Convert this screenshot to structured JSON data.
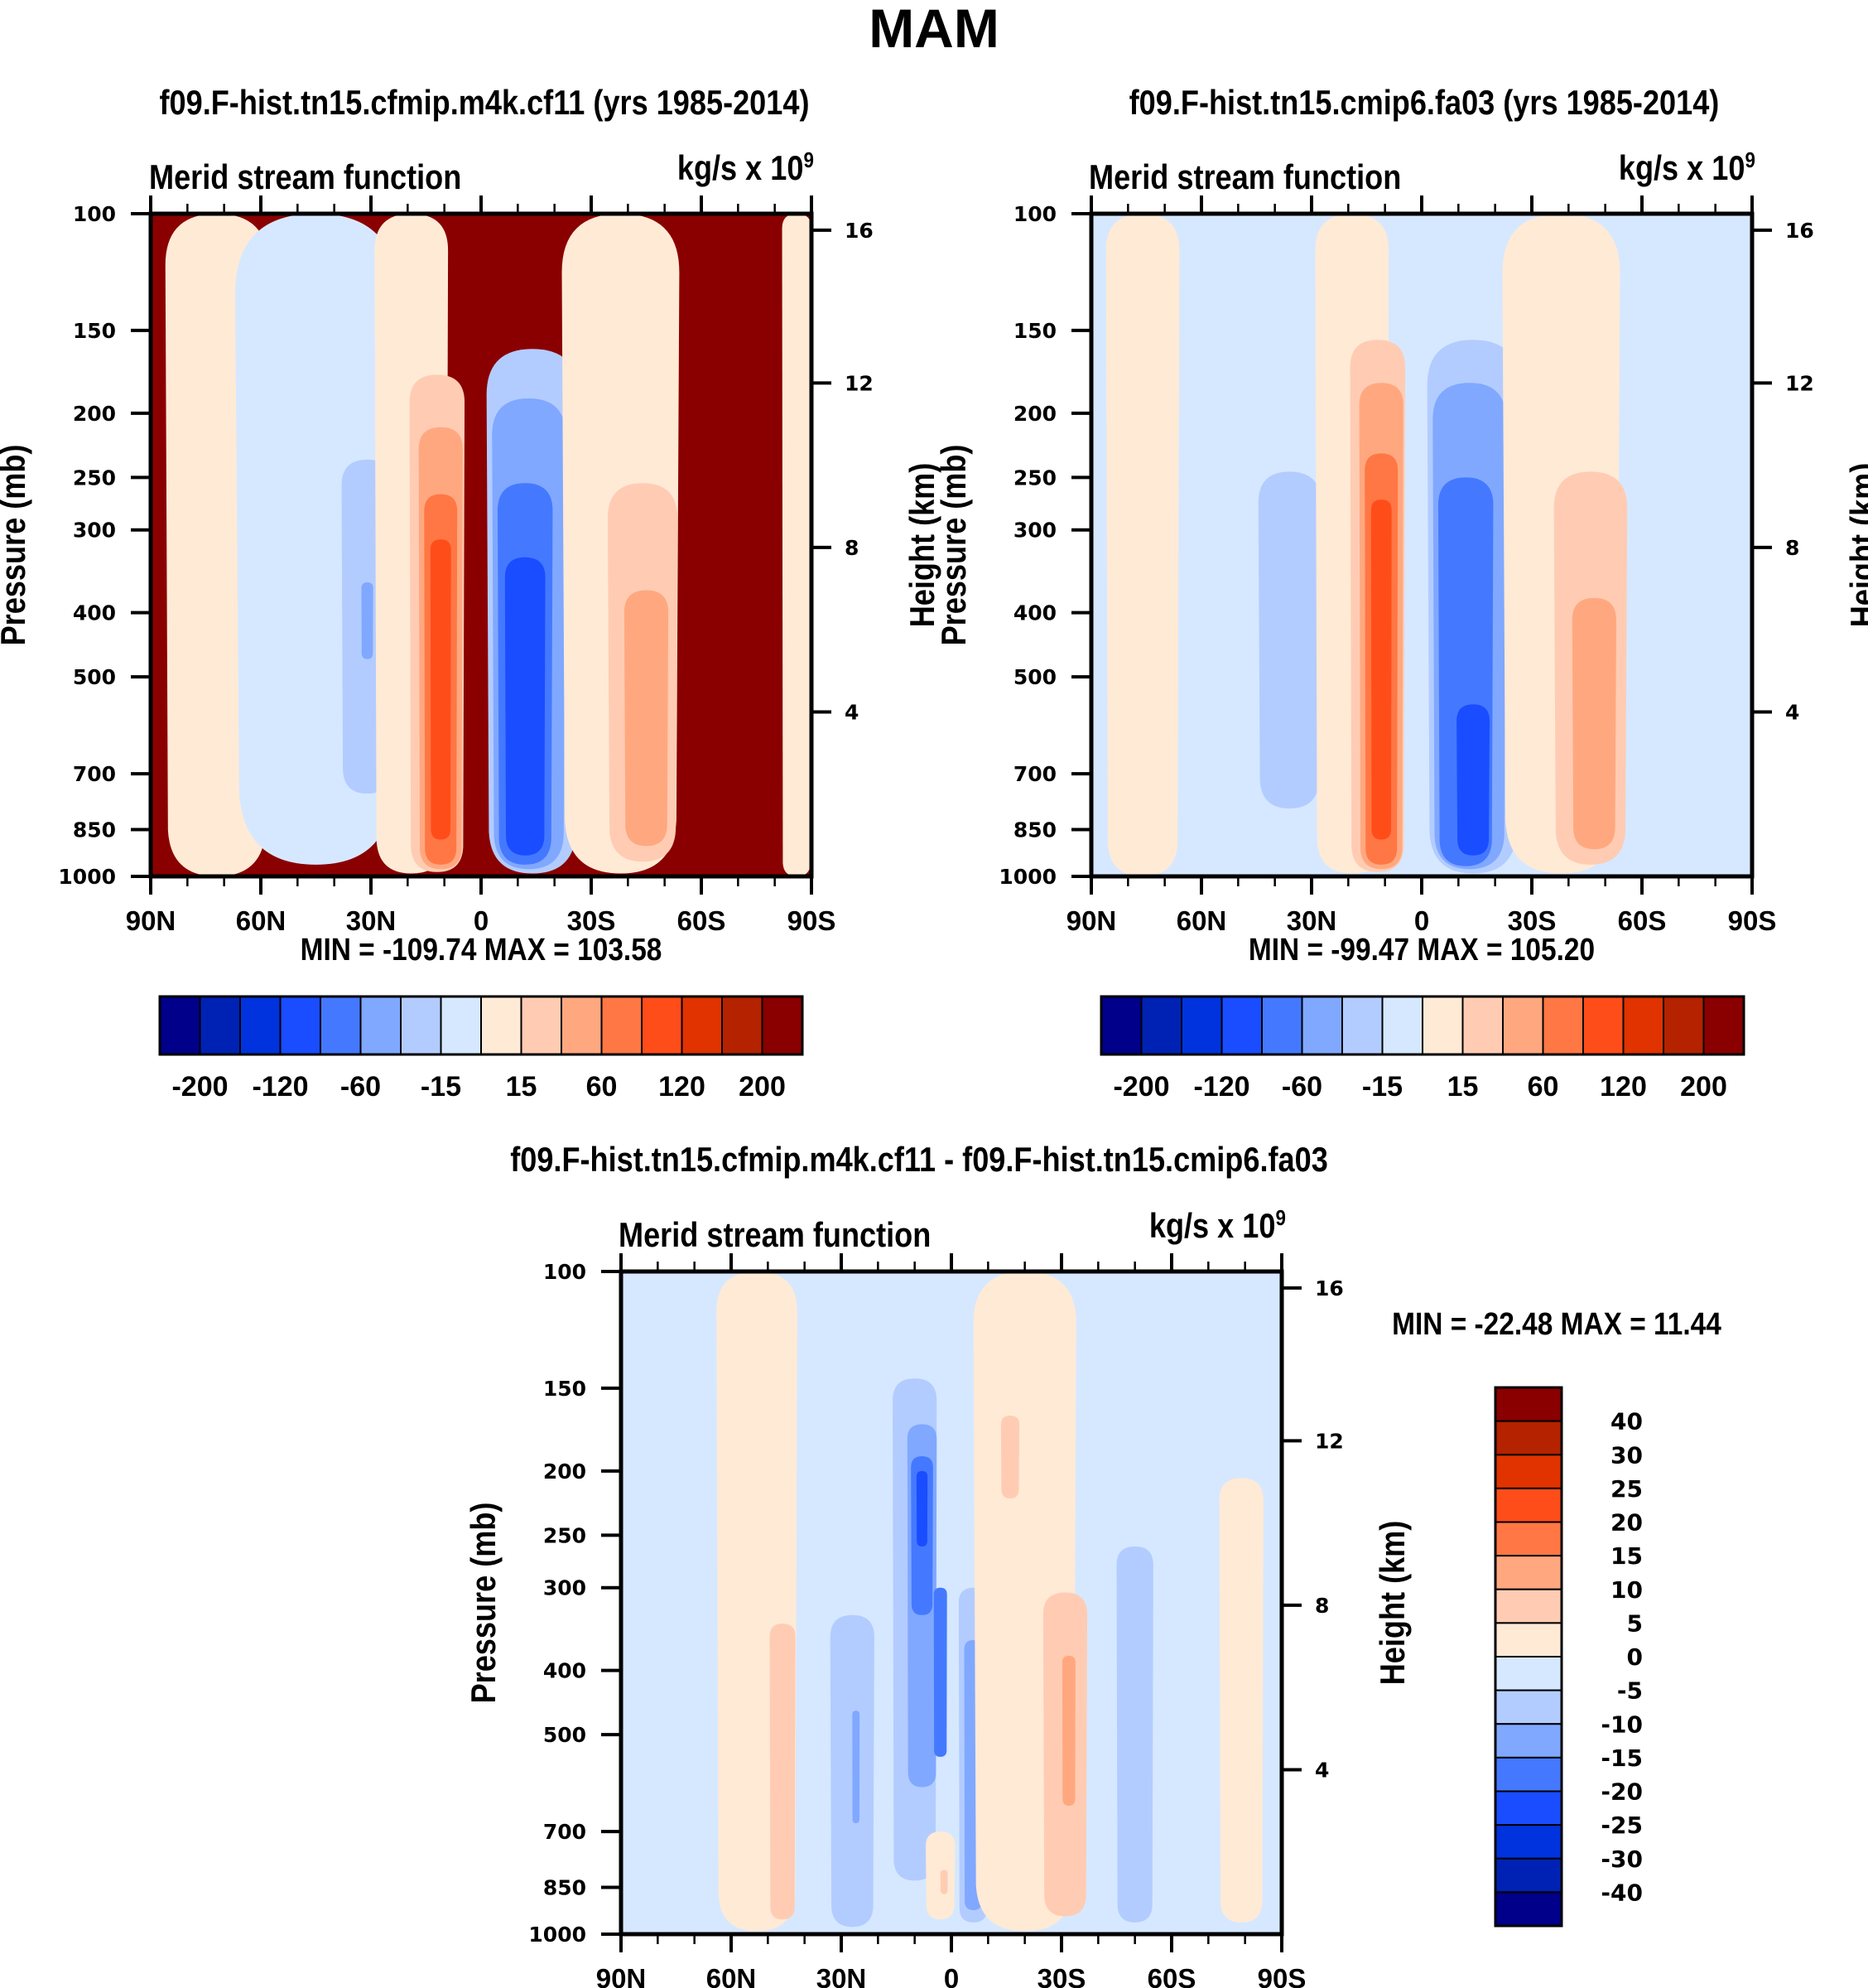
{
  "main_title": "MAM",
  "chart_data": [
    {
      "type": "heatmap",
      "id": "panel1",
      "title": "f09.F-hist.tn15.cfmip.m4k.cf11 (yrs 1985-2014)",
      "left_string": "Merid stream function",
      "units": "kg/s x 10",
      "units_exponent": "9",
      "ylabel": "Pressure (mb)",
      "ylabel_right": "Height (km)",
      "x_range": [
        90,
        -90
      ],
      "x_ticks": [
        90,
        60,
        30,
        0,
        -30,
        -60,
        -90
      ],
      "x_tick_labels": [
        "90N",
        "60N",
        "30N",
        "0",
        "30S",
        "60S",
        "90S"
      ],
      "y_range": [
        1000,
        100
      ],
      "y_scale": "log",
      "y_ticks": [
        100,
        150,
        200,
        250,
        300,
        400,
        500,
        700,
        850,
        1000
      ],
      "y_tick_labels": [
        "100",
        "150",
        "200",
        "250",
        "300",
        "400",
        "500",
        "700",
        "850",
        "1000"
      ],
      "y_right_ticks_km": [
        16,
        12,
        8,
        4
      ],
      "min_max": "MIN = -109.74  MAX = 103.58",
      "min": -109.74,
      "max": 103.58,
      "background_level": 0,
      "features": [
        {
          "lat": 72,
          "p_top": 100,
          "p_bot": 1000,
          "half_width": 14,
          "level": 7,
          "note": "northern polar weak positive band"
        },
        {
          "lat": 45,
          "p_top": 100,
          "p_bot": 960,
          "half_width": 22,
          "level": 8
        },
        {
          "lat": 31,
          "p_top": 235,
          "p_bot": 750,
          "half_width": 7,
          "level": 9,
          "note": "NH midlat negative cell"
        },
        {
          "lat": 31,
          "p_top": 360,
          "p_bot": 470,
          "half_width": 1.6,
          "level": 10
        },
        {
          "lat": 19,
          "p_top": 100,
          "p_bot": 990,
          "half_width": 10,
          "level": 7
        },
        {
          "lat": 12,
          "p_top": 175,
          "p_bot": 985,
          "half_width": 7.5,
          "level": 6
        },
        {
          "lat": 11,
          "p_top": 210,
          "p_bot": 975,
          "half_width": 6,
          "level": 5
        },
        {
          "lat": 11,
          "p_top": 265,
          "p_bot": 960,
          "half_width": 4.5,
          "level": 4
        },
        {
          "lat": 11,
          "p_top": 310,
          "p_bot": 880,
          "half_width": 2.8,
          "level": 3
        },
        {
          "lat": -14,
          "p_top": 160,
          "p_bot": 990,
          "half_width": 12.5,
          "level": 9,
          "note": "SH Hadley cell (negative)"
        },
        {
          "lat": -13,
          "p_top": 190,
          "p_bot": 975,
          "half_width": 10,
          "level": 10
        },
        {
          "lat": -12,
          "p_top": 255,
          "p_bot": 960,
          "half_width": 7.5,
          "level": 11
        },
        {
          "lat": -12,
          "p_top": 330,
          "p_bot": 930,
          "half_width": 5.5,
          "level": 12
        },
        {
          "lat": -38,
          "p_top": 100,
          "p_bot": 990,
          "half_width": 16,
          "level": 7
        },
        {
          "lat": -44,
          "p_top": 255,
          "p_bot": 950,
          "half_width": 9.5,
          "level": 6
        },
        {
          "lat": -45,
          "p_top": 370,
          "p_bot": 900,
          "half_width": 6,
          "level": 5
        },
        {
          "lat": -86,
          "p_top": 100,
          "p_bot": 1000,
          "half_width": 4,
          "level": 7
        }
      ]
    },
    {
      "type": "heatmap",
      "id": "panel2",
      "title": "f09.F-hist.tn15.cmip6.fa03 (yrs 1985-2014)",
      "left_string": "Merid stream function",
      "units": "kg/s x 10",
      "units_exponent": "9",
      "ylabel": "Pressure (mb)",
      "ylabel_right": "Height (km)",
      "x_range": [
        90,
        -90
      ],
      "x_ticks": [
        90,
        60,
        30,
        0,
        -30,
        -60,
        -90
      ],
      "x_tick_labels": [
        "90N",
        "60N",
        "30N",
        "0",
        "30S",
        "60S",
        "90S"
      ],
      "y_range": [
        1000,
        100
      ],
      "y_scale": "log",
      "y_ticks": [
        100,
        150,
        200,
        250,
        300,
        400,
        500,
        700,
        850,
        1000
      ],
      "y_tick_labels": [
        "100",
        "150",
        "200",
        "250",
        "300",
        "400",
        "500",
        "700",
        "850",
        "1000"
      ],
      "y_right_ticks_km": [
        16,
        12,
        8,
        4
      ],
      "min_max": "MIN = -99.47  MAX = 105.20",
      "min": -99.47,
      "max": 105.2,
      "background_level": 8,
      "features": [
        {
          "lat": 76,
          "p_top": 100,
          "p_bot": 1000,
          "half_width": 10,
          "level": 7
        },
        {
          "lat": 44,
          "p_top": 100,
          "p_bot": 970,
          "half_width": 22,
          "level": 8
        },
        {
          "lat": 36,
          "p_top": 245,
          "p_bot": 790,
          "half_width": 8.5,
          "level": 9,
          "note": "NH midlat negative cell"
        },
        {
          "lat": 19,
          "p_top": 100,
          "p_bot": 990,
          "half_width": 10,
          "level": 7
        },
        {
          "lat": 12,
          "p_top": 155,
          "p_bot": 985,
          "half_width": 7.5,
          "level": 6
        },
        {
          "lat": 11,
          "p_top": 180,
          "p_bot": 975,
          "half_width": 6,
          "level": 5
        },
        {
          "lat": 11,
          "p_top": 230,
          "p_bot": 960,
          "half_width": 4.5,
          "level": 4
        },
        {
          "lat": 11,
          "p_top": 270,
          "p_bot": 880,
          "half_width": 2.8,
          "level": 3
        },
        {
          "lat": -14,
          "p_top": 155,
          "p_bot": 990,
          "half_width": 12.5,
          "level": 9
        },
        {
          "lat": -13,
          "p_top": 180,
          "p_bot": 975,
          "half_width": 10,
          "level": 10
        },
        {
          "lat": -12,
          "p_top": 250,
          "p_bot": 965,
          "half_width": 7.5,
          "level": 11
        },
        {
          "lat": -14,
          "p_top": 550,
          "p_bot": 930,
          "half_width": 4.5,
          "level": 12
        },
        {
          "lat": -38,
          "p_top": 100,
          "p_bot": 990,
          "half_width": 16,
          "level": 7
        },
        {
          "lat": -46,
          "p_top": 245,
          "p_bot": 960,
          "half_width": 10,
          "level": 6
        },
        {
          "lat": -47,
          "p_top": 380,
          "p_bot": 910,
          "half_width": 6,
          "level": 5
        }
      ]
    },
    {
      "type": "heatmap",
      "id": "panel3",
      "title": "f09.F-hist.tn15.cfmip.m4k.cf11 - f09.F-hist.tn15.cmip6.fa03",
      "left_string": "Merid stream function",
      "units": "kg/s x 10",
      "units_exponent": "9",
      "ylabel": "Pressure (mb)",
      "ylabel_right": "Height (km)",
      "x_range": [
        90,
        -90
      ],
      "x_ticks": [
        90,
        60,
        30,
        0,
        -30,
        -60,
        -90
      ],
      "x_tick_labels": [
        "90N",
        "60N",
        "30N",
        "0",
        "30S",
        "60S",
        "90S"
      ],
      "y_range": [
        1000,
        100
      ],
      "y_scale": "log",
      "y_ticks": [
        100,
        150,
        200,
        250,
        300,
        400,
        500,
        700,
        850,
        1000
      ],
      "y_tick_labels": [
        "100",
        "150",
        "200",
        "250",
        "300",
        "400",
        "500",
        "700",
        "850",
        "1000"
      ],
      "y_right_ticks_km": [
        16,
        12,
        8,
        4
      ],
      "min_max": "MIN = -22.48  MAX =  11.44",
      "min": -22.48,
      "max": 11.44,
      "background_level": 8,
      "features": [
        {
          "lat": 53,
          "p_top": 100,
          "p_bot": 990,
          "half_width": 11,
          "level": 7
        },
        {
          "lat": 46,
          "p_top": 340,
          "p_bot": 950,
          "half_width": 3.5,
          "level": 6
        },
        {
          "lat": 27,
          "p_top": 330,
          "p_bot": 975,
          "half_width": 6,
          "level": 9
        },
        {
          "lat": 26,
          "p_top": 460,
          "p_bot": 680,
          "half_width": 1,
          "level": 10
        },
        {
          "lat": 12,
          "p_top": 360,
          "p_bot": 760,
          "half_width": 2.5,
          "level": 7
        },
        {
          "lat": 10,
          "p_top": 145,
          "p_bot": 830,
          "half_width": 6,
          "level": 9
        },
        {
          "lat": 8,
          "p_top": 170,
          "p_bot": 600,
          "half_width": 4,
          "level": 10
        },
        {
          "lat": 8,
          "p_top": 190,
          "p_bot": 330,
          "half_width": 3,
          "level": 11
        },
        {
          "lat": 3,
          "p_top": 300,
          "p_bot": 540,
          "half_width": 1.8,
          "level": 11
        },
        {
          "lat": 8,
          "p_top": 200,
          "p_bot": 260,
          "half_width": 1.5,
          "level": 12
        },
        {
          "lat": 3,
          "p_top": 700,
          "p_bot": 950,
          "half_width": 4,
          "level": 7
        },
        {
          "lat": 2,
          "p_top": 800,
          "p_bot": 870,
          "half_width": 1,
          "level": 6
        },
        {
          "lat": -6,
          "p_top": 300,
          "p_bot": 960,
          "half_width": 4,
          "level": 9
        },
        {
          "lat": -6,
          "p_top": 360,
          "p_bot": 920,
          "half_width": 2.5,
          "level": 10
        },
        {
          "lat": -20,
          "p_top": 100,
          "p_bot": 990,
          "half_width": 14,
          "level": 7
        },
        {
          "lat": -16,
          "p_top": 165,
          "p_bot": 220,
          "half_width": 2.5,
          "level": 6
        },
        {
          "lat": -31,
          "p_top": 305,
          "p_bot": 940,
          "half_width": 6,
          "level": 6
        },
        {
          "lat": -32,
          "p_top": 380,
          "p_bot": 640,
          "half_width": 1.8,
          "level": 5
        },
        {
          "lat": -50,
          "p_top": 260,
          "p_bot": 960,
          "half_width": 5,
          "level": 9
        },
        {
          "lat": -79,
          "p_top": 205,
          "p_bot": 960,
          "half_width": 6,
          "level": 7
        }
      ]
    }
  ],
  "colorbars": [
    {
      "id": "colorbar1",
      "orientation": "horizontal",
      "labels": [
        "-200",
        "-120",
        "-60",
        "-15",
        "15",
        "60",
        "120",
        "200"
      ],
      "colors": [
        "#00008a",
        "#0022b4",
        "#0033dd",
        "#1a4dff",
        "#4479ff",
        "#80a8ff",
        "#b3ccff",
        "#d6e8ff",
        "#ffead6",
        "#ffccb3",
        "#ffa880",
        "#ff7744",
        "#ff4d1a",
        "#e03300",
        "#b42200",
        "#8a0000"
      ]
    },
    {
      "id": "colorbar2",
      "orientation": "horizontal",
      "labels": [
        "-200",
        "-120",
        "-60",
        "-15",
        "15",
        "60",
        "120",
        "200"
      ],
      "colors": [
        "#00008a",
        "#0022b4",
        "#0033dd",
        "#1a4dff",
        "#4479ff",
        "#80a8ff",
        "#b3ccff",
        "#d6e8ff",
        "#ffead6",
        "#ffccb3",
        "#ffa880",
        "#ff7744",
        "#ff4d1a",
        "#e03300",
        "#b42200",
        "#8a0000"
      ]
    },
    {
      "id": "colorbar3",
      "orientation": "vertical",
      "labels": [
        "40",
        "30",
        "25",
        "20",
        "15",
        "10",
        "5",
        "0",
        "-5",
        "-10",
        "-15",
        "-20",
        "-25",
        "-30",
        "-40"
      ],
      "colors": [
        "#8a0000",
        "#b42200",
        "#e03300",
        "#ff4d1a",
        "#ff7744",
        "#ffa880",
        "#ffccb3",
        "#ffead6",
        "#d6e8ff",
        "#b3ccff",
        "#80a8ff",
        "#4479ff",
        "#1a4dff",
        "#0033dd",
        "#0022b4",
        "#00008a"
      ]
    }
  ],
  "level_colors": [
    "#8a0000",
    "#b42200",
    "#e03300",
    "#ff4d1a",
    "#ff7744",
    "#ffa880",
    "#ffccb3",
    "#ffead6",
    "#d6e8ff",
    "#b3ccff",
    "#80a8ff",
    "#4479ff",
    "#1a4dff",
    "#0033dd",
    "#0022b4",
    "#00008a"
  ]
}
